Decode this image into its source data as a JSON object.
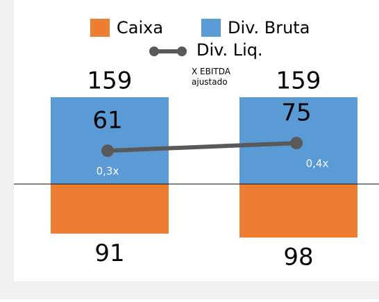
{
  "chart_data": {
    "type": "bar",
    "categories": [
      null,
      null
    ],
    "series": [
      {
        "name": "Caixa",
        "color": "#ed7d31",
        "values": [
          -91,
          -98
        ],
        "value_labels": [
          "91",
          "98"
        ]
      },
      {
        "name": "Div. Bruta",
        "color": "#5b9bd5",
        "values": [
          159,
          159
        ]
      },
      {
        "name": "Div. Liq.",
        "type": "line",
        "color": "#595959",
        "values": [
          61,
          75
        ]
      }
    ],
    "annotation_title": "X EBITDA ajustado",
    "annotations": [
      "0,3x",
      "0,4x"
    ],
    "ylim": [
      -150,
      200
    ]
  }
}
